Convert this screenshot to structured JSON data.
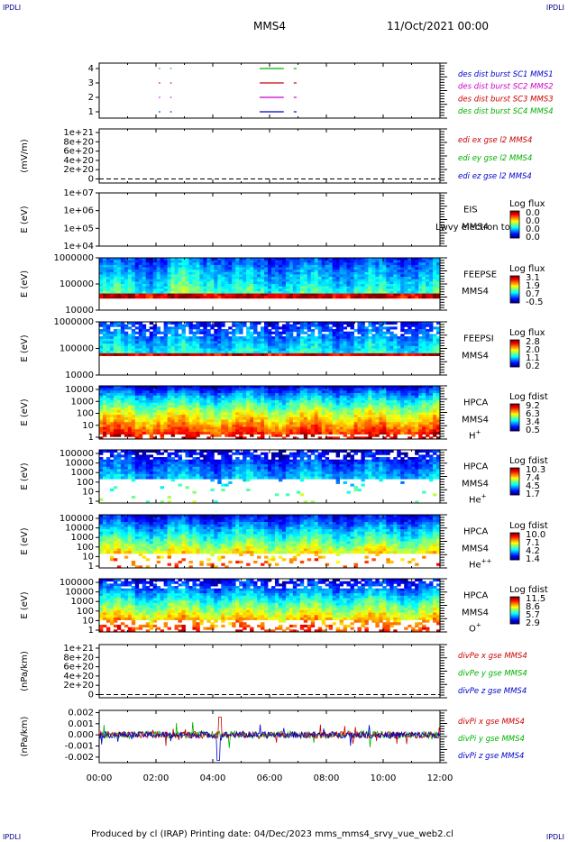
{
  "corners": {
    "tl": "IPDLI",
    "tr": "IPDLI",
    "bl": "IPDLI",
    "br": "IPDLI"
  },
  "header": {
    "spacecraft": "MMS4",
    "datetime": "11/Oct/2021 00:00"
  },
  "footer": "Produced by cl (IRAP)    Printing date: 04/Dec/2023    mms_mms4_srvy_vue_web2.cl",
  "x_axis": {
    "ticks": [
      "00:00",
      "02:00",
      "04:00",
      "06:00",
      "08:00",
      "10:00",
      "12:00"
    ]
  },
  "colors": {
    "sc1": "#0000cc",
    "sc2": "#cc00cc",
    "sc3": "#cc0000",
    "sc4": "#00b000"
  },
  "chart_data": [
    {
      "type": "line",
      "panel": "availability",
      "y_ticks": [
        "4",
        "3",
        "2",
        "1"
      ],
      "legend": [
        {
          "label": "des dist burst SC1 MMS1",
          "color": "#0000cc"
        },
        {
          "label": "des dist burst SC2 MMS2",
          "color": "#cc00cc"
        },
        {
          "label": "des dist burst SC3 MMS3",
          "color": "#cc0000"
        },
        {
          "label": "des dist burst SC4 MMS4",
          "color": "#00b000"
        }
      ],
      "series": [
        {
          "level": 4,
          "color": "#00b000",
          "intervals": [
            [
              2.1,
              2.15
            ],
            [
              2.5,
              2.55
            ],
            [
              5.65,
              6.5
            ],
            [
              6.85,
              6.95
            ]
          ]
        },
        {
          "level": 3,
          "color": "#cc0000",
          "intervals": [
            [
              2.1,
              2.15
            ],
            [
              2.5,
              2.55
            ],
            [
              5.65,
              6.5
            ],
            [
              6.85,
              6.95
            ]
          ]
        },
        {
          "level": 2,
          "color": "#cc00cc",
          "intervals": [
            [
              2.1,
              2.15
            ],
            [
              2.5,
              2.55
            ],
            [
              5.65,
              6.5
            ],
            [
              6.85,
              6.95
            ]
          ]
        },
        {
          "level": 1,
          "color": "#0000cc",
          "intervals": [
            [
              2.1,
              2.15
            ],
            [
              2.5,
              2.55
            ],
            [
              5.65,
              6.5
            ],
            [
              6.85,
              6.95
            ]
          ]
        }
      ]
    },
    {
      "type": "line",
      "panel": "edi",
      "ylabel": "(mV/m)",
      "y_ticks": [
        "1e+21",
        "8e+20",
        "6e+20",
        "4e+20",
        "2e+20",
        "0"
      ],
      "legend": [
        {
          "label": "edi ex gse l2 MMS4",
          "color": "#cc0000"
        },
        {
          "label": "edi ey gse l2 MMS4",
          "color": "#00b000"
        },
        {
          "label": "edi ez gse l2 MMS4",
          "color": "#0000cc"
        }
      ]
    },
    {
      "type": "heatmap",
      "panel": "eis",
      "ylabel": "E (eV)",
      "y_ticks": [
        "1e+07",
        "1e+06",
        "1e+05",
        "1e+04"
      ],
      "side_labels": [
        "EIS",
        "MMS4"
      ],
      "overlay": "Lwvy electron to",
      "colorbar": {
        "title": "Log flux",
        "ticks": [
          "0.0",
          "0.0",
          "0.0",
          "0.0"
        ]
      }
    },
    {
      "type": "heatmap",
      "panel": "feeps-e",
      "ylabel": "E (eV)",
      "y_ticks": [
        "1000000",
        "100000",
        "10000"
      ],
      "side_labels": [
        "FEEPSE",
        "MMS4"
      ],
      "colorbar": {
        "title": "Log flux",
        "ticks": [
          "3.1",
          "1.9",
          "0.7",
          "-0.5"
        ]
      }
    },
    {
      "type": "heatmap",
      "panel": "feeps-i",
      "ylabel": "E (eV)",
      "y_ticks": [
        "1000000",
        "100000",
        "10000"
      ],
      "side_labels": [
        "FEEPSI",
        "MMS4"
      ],
      "colorbar": {
        "title": "Log flux",
        "ticks": [
          "2.8",
          "2.0",
          "1.1",
          "0.2"
        ]
      }
    },
    {
      "type": "heatmap",
      "panel": "hpca-h",
      "ylabel": "E (eV)",
      "y_ticks": [
        "10000",
        "1000",
        "100",
        "10",
        "1"
      ],
      "side_labels": [
        "HPCA",
        "MMS4",
        "H+"
      ],
      "colorbar": {
        "title": "Log fdist",
        "ticks": [
          "9.2",
          "6.3",
          "3.4",
          "0.5"
        ]
      }
    },
    {
      "type": "heatmap",
      "panel": "hpca-he",
      "ylabel": "E (eV)",
      "y_ticks": [
        "100000",
        "10000",
        "1000",
        "100",
        "10",
        "1"
      ],
      "side_labels": [
        "HPCA",
        "MMS4",
        "He+"
      ],
      "colorbar": {
        "title": "Log fdist",
        "ticks": [
          "10.3",
          "7.4",
          "4.5",
          "1.7"
        ]
      }
    },
    {
      "type": "heatmap",
      "panel": "hpca-he2",
      "ylabel": "E (eV)",
      "y_ticks": [
        "100000",
        "10000",
        "1000",
        "100",
        "10",
        "1"
      ],
      "side_labels": [
        "HPCA",
        "MMS4",
        "He++"
      ],
      "colorbar": {
        "title": "Log fdist",
        "ticks": [
          "10.0",
          "7.1",
          "4.2",
          "1.4"
        ]
      }
    },
    {
      "type": "heatmap",
      "panel": "hpca-o",
      "ylabel": "E (eV)",
      "y_ticks": [
        "100000",
        "10000",
        "1000",
        "100",
        "10",
        "1"
      ],
      "side_labels": [
        "HPCA",
        "MMS4",
        "O+"
      ],
      "colorbar": {
        "title": "Log fdist",
        "ticks": [
          "11.5",
          "8.6",
          "5.7",
          "2.9"
        ]
      }
    },
    {
      "type": "line",
      "panel": "divpe",
      "ylabel": "(nPa/km)",
      "y_ticks": [
        "1e+21",
        "8e+20",
        "6e+20",
        "4e+20",
        "2e+20",
        "0"
      ],
      "legend": [
        {
          "label": "divPe x gse MMS4",
          "color": "#cc0000"
        },
        {
          "label": "divPe y gse MMS4",
          "color": "#00b000"
        },
        {
          "label": "divPe z gse MMS4",
          "color": "#0000cc"
        }
      ]
    },
    {
      "type": "line",
      "panel": "divpi",
      "ylabel": "(nPa/km)",
      "y_ticks": [
        "0.002",
        "0.001",
        "0.000",
        "-0.001",
        "-0.002"
      ],
      "ylim": [
        -0.0025,
        0.0022
      ],
      "legend": [
        {
          "label": "divPi x gse MMS4",
          "color": "#cc0000"
        },
        {
          "label": "divPi y gse MMS4",
          "color": "#00b000"
        },
        {
          "label": "divPi z gse MMS4",
          "color": "#0000cc"
        }
      ]
    }
  ]
}
